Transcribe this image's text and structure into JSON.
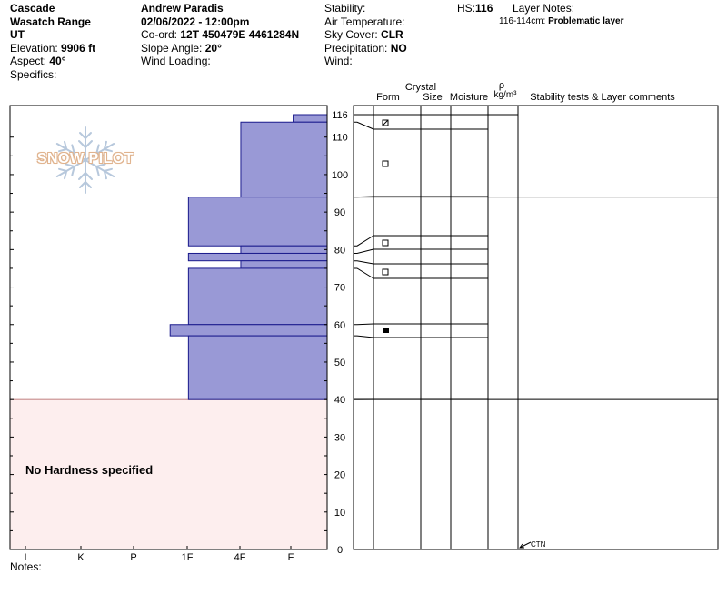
{
  "header": {
    "area": "Cascade",
    "range": "Wasatch Range",
    "state": "UT",
    "elevation_label": "Elevation:",
    "elevation_value": "9906 ft",
    "aspect_label": "Aspect:",
    "aspect_value": "40°",
    "specifics_label": "Specifics:",
    "observer": "Andrew Paradis",
    "datetime": "02/06/2022 - 12:00pm",
    "coord_label": "Co-ord:",
    "coord_value": "12T 450479E 4461284N",
    "slope_label": "Slope Angle:",
    "slope_value": "20°",
    "wind_loading_label": "Wind Loading:",
    "stability_label": "Stability:",
    "air_temp_label": "Air Temperature:",
    "sky_label": "Sky Cover:",
    "sky_value": "CLR",
    "precip_label": "Precipitation:",
    "precip_value": "NO",
    "wind_label": "Wind:",
    "hs_label": "HS:",
    "hs_value": "116",
    "layer_notes_label": "Layer Notes:",
    "layer_note_range": "116-114cm:",
    "layer_note_text": "Problematic layer"
  },
  "column_headers": {
    "form": "Form",
    "crystal": "Crystal",
    "size": "Size",
    "moisture": "Moisture",
    "rho": "ρ",
    "density_unit": "kg/m³",
    "comments": "Stability tests & Layer comments"
  },
  "logo_text": "SNOW PILOT",
  "no_hardness_text": "No Hardness specified",
  "notes_label": "Notes:",
  "test_label": "CTN",
  "colors": {
    "hardness_fill": "#9999d6",
    "hardness_stroke": "#1a1a8c",
    "no_hardness_fill": "#fdeeee",
    "no_hardness_stroke": "#c08080"
  },
  "chart_data": {
    "type": "bar",
    "orientation": "horizontal",
    "xlabel": "",
    "ylabel": "",
    "hardness_ticks": [
      "I",
      "K",
      "P",
      "1F",
      "4F",
      "F"
    ],
    "ylim": [
      0,
      116
    ],
    "yticks": [
      0,
      10,
      20,
      30,
      40,
      50,
      60,
      70,
      80,
      90,
      100,
      110,
      116
    ],
    "hardness_layers": [
      {
        "bottom": 114,
        "top": 116,
        "hardness": 0.65
      },
      {
        "bottom": 94,
        "top": 114,
        "hardness": 1.65
      },
      {
        "bottom": 81,
        "top": 94,
        "hardness": 2.65
      },
      {
        "bottom": 79,
        "top": 81,
        "hardness": 1.65
      },
      {
        "bottom": 77,
        "top": 79,
        "hardness": 2.65
      },
      {
        "bottom": 75,
        "top": 77,
        "hardness": 1.65
      },
      {
        "bottom": 60,
        "top": 75,
        "hardness": 2.65
      },
      {
        "bottom": 57,
        "top": 60,
        "hardness": 3.0
      },
      {
        "bottom": 40,
        "top": 57,
        "hardness": 2.65
      }
    ],
    "no_hardness_range": [
      0,
      40
    ],
    "layer_boundaries": [
      116,
      114,
      94,
      84,
      81,
      79,
      77,
      75,
      72,
      60,
      57,
      40
    ],
    "grain_forms": [
      {
        "height": 115,
        "form": "faceted-rounded"
      },
      {
        "height": 103,
        "form": "faceted"
      },
      {
        "height": 82,
        "form": "faceted"
      },
      {
        "height": 74,
        "form": "faceted"
      },
      {
        "height": 58.5,
        "form": "depth-hoar"
      }
    ],
    "stability_tests": [
      {
        "height": 0,
        "result": "CTN"
      }
    ]
  }
}
